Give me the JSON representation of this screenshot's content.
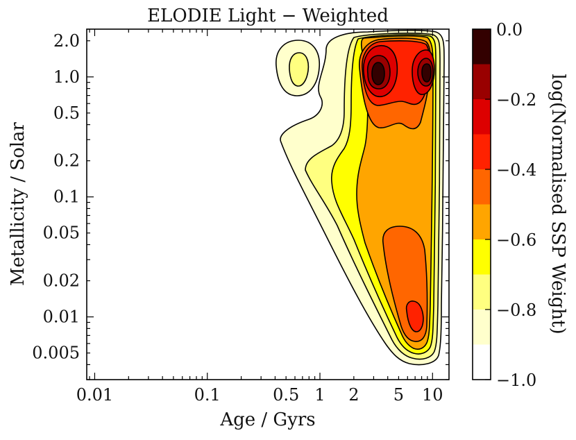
{
  "chart_data": {
    "type": "contour",
    "title": "ELODIE Light − Weighted",
    "xlabel": "Age / Gyrs",
    "ylabel": "Metallicity / Solar",
    "xscale": "log",
    "yscale": "log",
    "xlim": [
      0.0085,
      14
    ],
    "ylim": [
      0.003,
      2.5
    ],
    "x_ticks": [
      0.01,
      0.1,
      0.5,
      1,
      2,
      5,
      10
    ],
    "x_tick_labels": [
      "0.01",
      "0.1",
      "0.5",
      "1",
      "2",
      "5",
      "10"
    ],
    "y_ticks": [
      0.005,
      0.01,
      0.02,
      0.05,
      0.1,
      0.2,
      0.5,
      1.0,
      2.0
    ],
    "y_tick_labels": [
      "0.005",
      "0.01",
      "0.02",
      "0.05",
      "0.1",
      "0.2",
      "0.5",
      "1.0",
      "2.0"
    ],
    "colorbar": {
      "label": "log(Normalised SSP Weight)",
      "range": [
        -1.0,
        0.0
      ],
      "ticks": [
        0.0,
        -0.2,
        -0.4,
        -0.6,
        -0.8,
        -1.0
      ],
      "tick_labels": [
        "0.0",
        "−0.2",
        "−0.4",
        "−0.6",
        "−0.8",
        "−1.0"
      ],
      "levels": [
        -1.0,
        -0.9,
        -0.8,
        -0.7,
        -0.6,
        -0.5,
        -0.4,
        -0.3,
        -0.2,
        -0.1,
        0.0
      ],
      "colors": [
        "#ffffff",
        "#ffffcc",
        "#ffff80",
        "#ffff00",
        "#ffa500",
        "#ff6600",
        "#ff2200",
        "#dd0000",
        "#990000",
        "#330000"
      ]
    },
    "regions": [
      {
        "level": -0.9,
        "color": "#ffffcc",
        "description": "outermost envelope"
      },
      {
        "level": -0.8,
        "color": "#ffff80"
      },
      {
        "level": -0.7,
        "color": "#ffff00"
      },
      {
        "level": -0.6,
        "color": "#ffa500"
      },
      {
        "level": -0.5,
        "color": "#ff6600"
      },
      {
        "level": -0.4,
        "color": "#ff2200"
      },
      {
        "level": -0.3,
        "color": "#dd0000"
      },
      {
        "level": -0.2,
        "color": "#990000"
      },
      {
        "level": -0.1,
        "color": "#330000"
      }
    ],
    "peaks": [
      {
        "age": 3.0,
        "metallicity": 1.0,
        "level": 0.0
      },
      {
        "age": 8.5,
        "metallicity": 1.0,
        "level": 0.0
      },
      {
        "age": 6.5,
        "metallicity": 0.01,
        "level": -0.4
      },
      {
        "age": 0.6,
        "metallicity": 1.2,
        "level": -0.8
      }
    ]
  }
}
